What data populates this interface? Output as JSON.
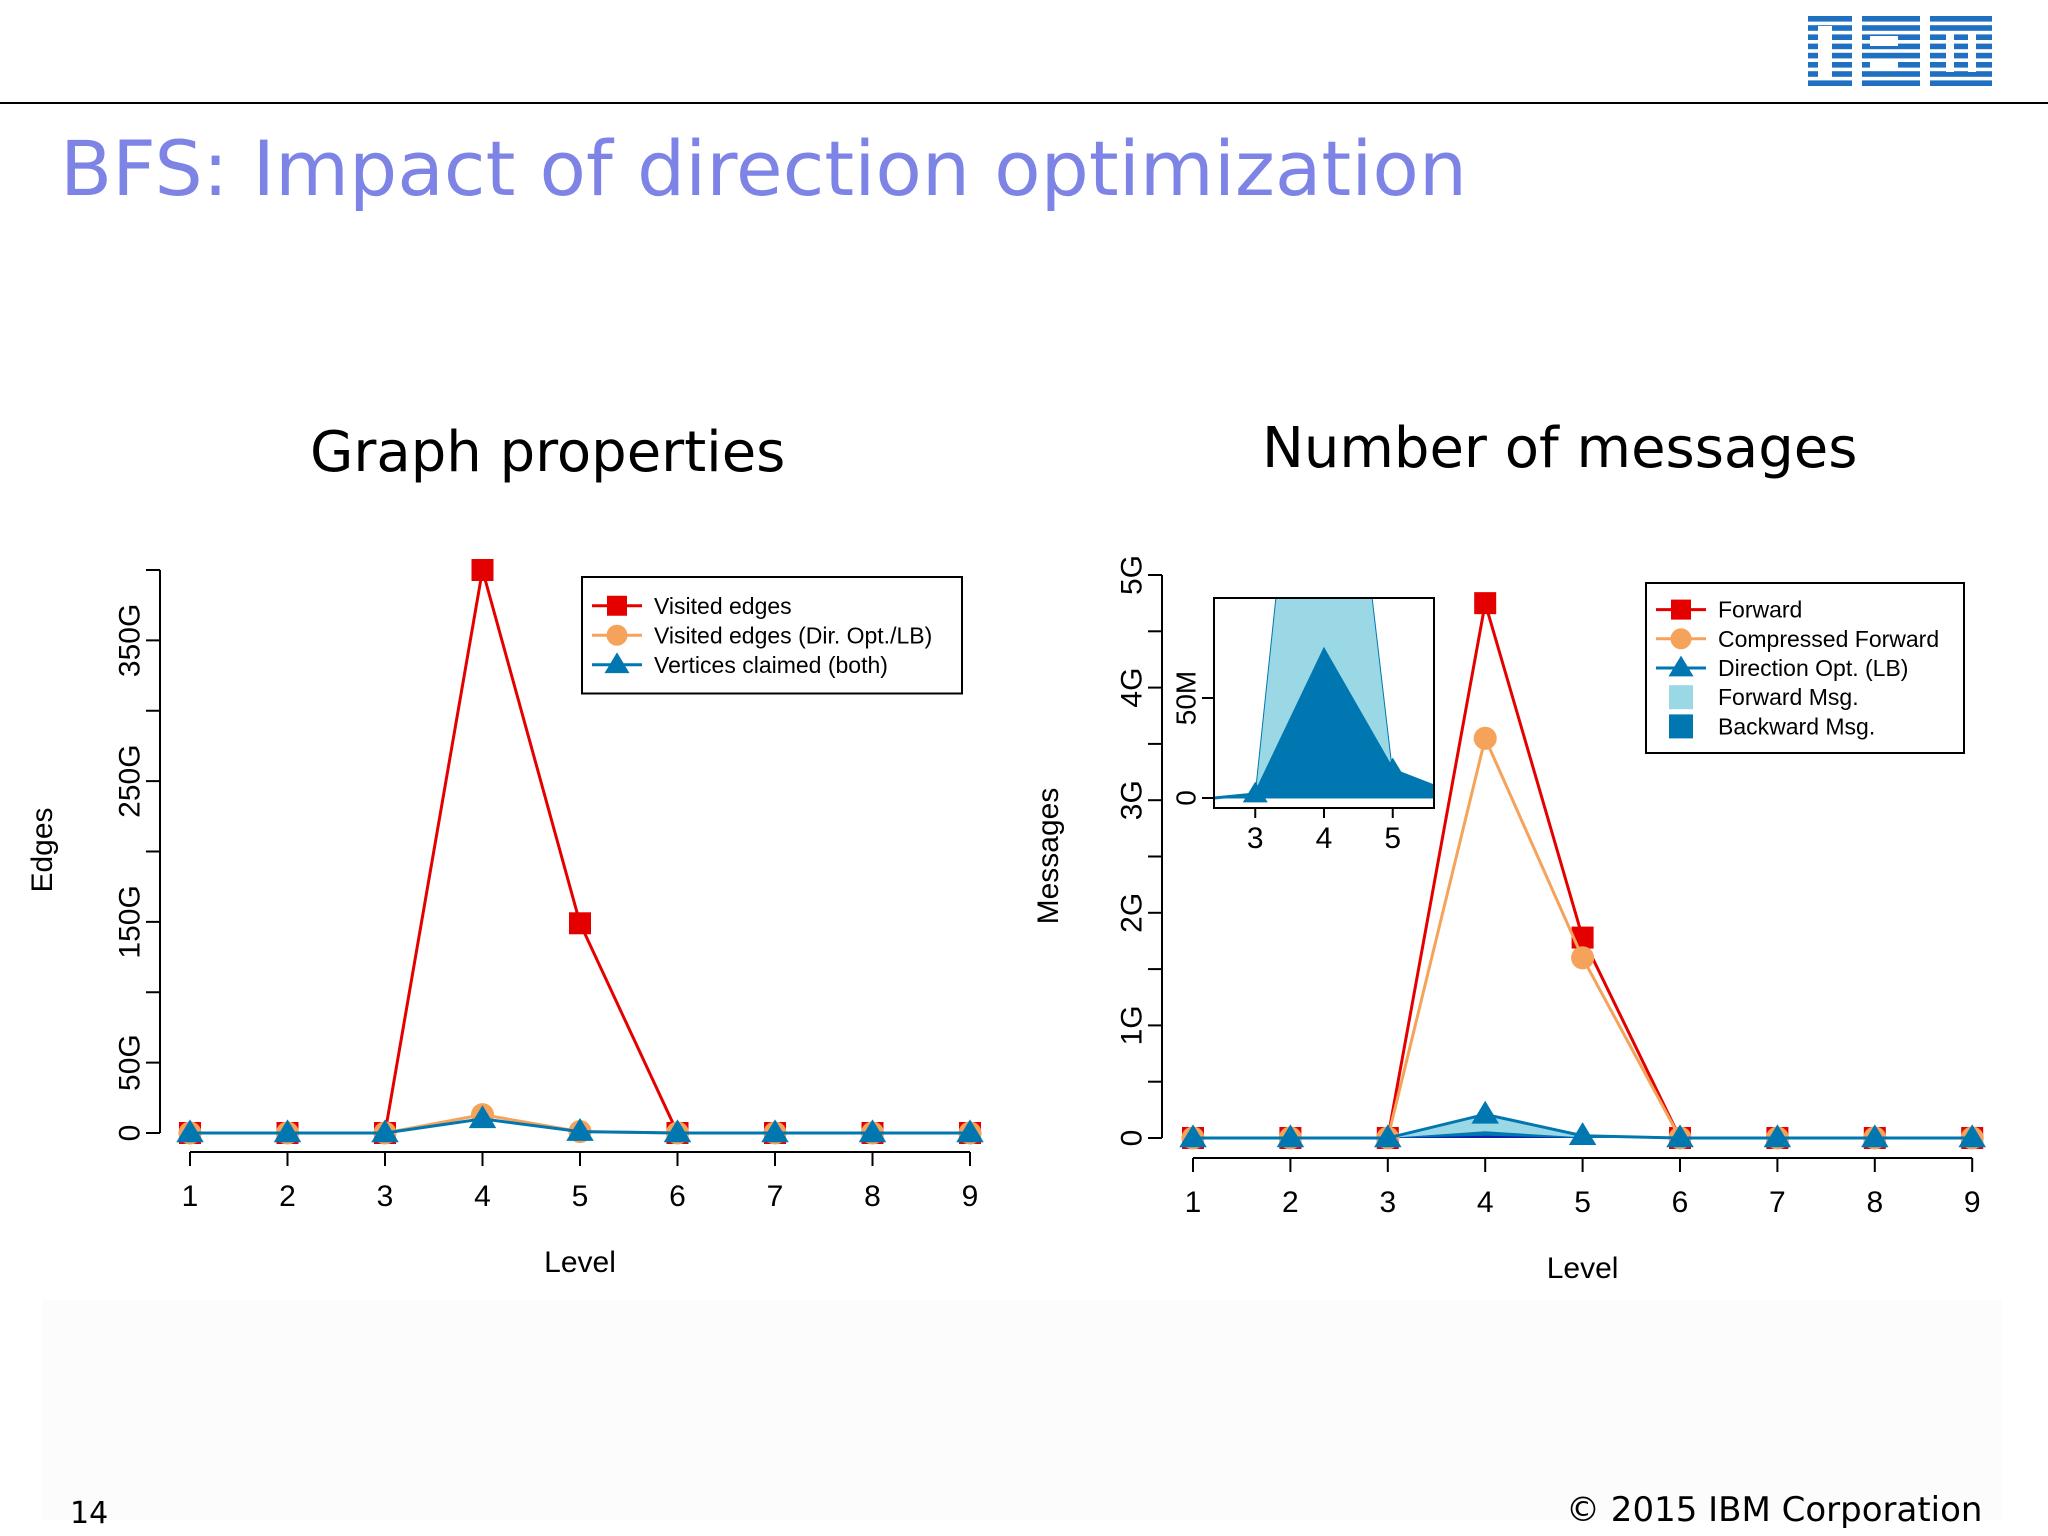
{
  "slide": {
    "title": "BFS: Impact of direction optimization",
    "page_number": "14",
    "copyright": "© 2015 IBM Corporation",
    "logo": "IBM",
    "title_color": "#7d84e6"
  },
  "chart_data": [
    {
      "type": "line",
      "title": "Graph properties",
      "xlabel": "Level",
      "ylabel": "Edges",
      "x": [
        1,
        2,
        3,
        4,
        5,
        6,
        7,
        8,
        9
      ],
      "xticks": [
        "1",
        "2",
        "3",
        "4",
        "5",
        "6",
        "7",
        "8",
        "9"
      ],
      "yticks": [
        {
          "value": 0,
          "label": "0"
        },
        {
          "value": 50,
          "label": "50G"
        },
        {
          "value": 150,
          "label": "150G"
        },
        {
          "value": 250,
          "label": "250G"
        },
        {
          "value": 350,
          "label": "350G"
        }
      ],
      "yminor": [
        100,
        200,
        300,
        400
      ],
      "ylim": [
        0,
        400
      ],
      "yunit": "G",
      "legend_position": "top-right",
      "series": [
        {
          "name": "Visited edges",
          "marker": "square",
          "color": "#e50000",
          "values": [
            0,
            0,
            0,
            400,
            149,
            0,
            0,
            0,
            0
          ]
        },
        {
          "name": "Visited edges (Dir. Opt./LB)",
          "marker": "circle",
          "color": "#f5a35a",
          "values": [
            0,
            0,
            0,
            13,
            1,
            0,
            0,
            0,
            0
          ]
        },
        {
          "name": "Vertices claimed (both)",
          "marker": "triangle",
          "color": "#0077b0",
          "values": [
            0,
            0,
            0,
            10,
            1,
            0,
            0,
            0,
            0
          ]
        }
      ]
    },
    {
      "type": "line",
      "title": "Number of messages",
      "xlabel": "Level",
      "ylabel": "Messages",
      "x": [
        1,
        2,
        3,
        4,
        5,
        6,
        7,
        8,
        9
      ],
      "xticks": [
        "1",
        "2",
        "3",
        "4",
        "5",
        "6",
        "7",
        "8",
        "9"
      ],
      "yticks": [
        {
          "value": 0,
          "label": "0"
        },
        {
          "value": 1,
          "label": "1G"
        },
        {
          "value": 2,
          "label": "2G"
        },
        {
          "value": 3,
          "label": "3G"
        },
        {
          "value": 4,
          "label": "4G"
        },
        {
          "value": 5,
          "label": "5G"
        }
      ],
      "yminor": [
        0.5,
        1.5,
        2.5,
        3.5,
        4.5
      ],
      "ylim": [
        0,
        5
      ],
      "yunit": "G",
      "legend_position": "top-right",
      "series": [
        {
          "name": "Forward",
          "marker": "square",
          "color": "#e50000",
          "values": [
            0,
            0,
            0,
            4.75,
            1.78,
            0,
            0,
            0,
            0
          ]
        },
        {
          "name": "Compressed Forward",
          "marker": "circle",
          "color": "#f5a35a",
          "values": [
            0,
            0,
            0,
            3.55,
            1.6,
            0,
            0,
            0,
            0
          ]
        },
        {
          "name": "Direction Opt. (LB)",
          "marker": "triangle",
          "color": "#0077b0",
          "values": [
            0,
            0,
            0,
            0.21,
            0.02,
            0,
            0,
            0,
            0
          ]
        }
      ],
      "areas": [
        {
          "name": "Forward Msg.",
          "color": "#9ad8e6",
          "values": [
            0,
            0,
            0,
            0.21,
            0.02,
            0,
            0,
            0,
            0
          ]
        },
        {
          "name": "Backward Msg.",
          "color": "#0077b0",
          "values": [
            0,
            0,
            0,
            0.06,
            0.005,
            0,
            0,
            0,
            0
          ]
        }
      ],
      "inset": {
        "xlim": [
          2.4,
          5.6
        ],
        "ylim": [
          0,
          100
        ],
        "yunit": "M",
        "xticks": [
          "3",
          "4",
          "5"
        ],
        "xtick_values": [
          3,
          4,
          5
        ],
        "yticks": [
          {
            "value": 0,
            "label": "0"
          },
          {
            "value": 50,
            "label": "50M"
          }
        ],
        "forward_area": {
          "x": [
            2.4,
            3,
            3.3,
            4,
            4.7,
            5,
            5.6
          ],
          "y": [
            0,
            2,
            100,
            100,
            100,
            12,
            5
          ]
        },
        "backward_area": {
          "x": [
            2.4,
            3,
            4,
            5,
            5.6
          ],
          "y": [
            0,
            1,
            74,
            14,
            6
          ]
        },
        "direction_line": {
          "x": [
            2.4,
            3,
            4,
            5,
            5.6
          ],
          "y": [
            0,
            2,
            74,
            14,
            6
          ]
        }
      }
    }
  ]
}
